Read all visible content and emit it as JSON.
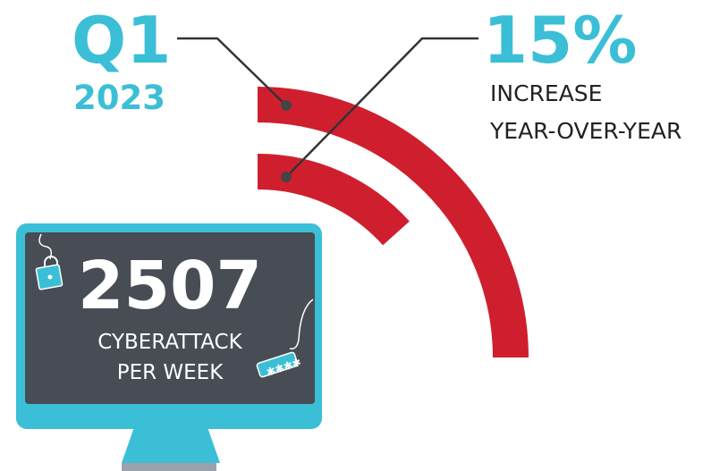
{
  "period": {
    "quarter": "Q1",
    "year": "2023"
  },
  "growth": {
    "value": "15%",
    "label_lines": [
      "INCREASE",
      "YEAR-OVER-YEAR"
    ]
  },
  "monitor": {
    "value": "2507",
    "label_lines": [
      "CYBERATTACK",
      "PER WEEK"
    ]
  }
}
